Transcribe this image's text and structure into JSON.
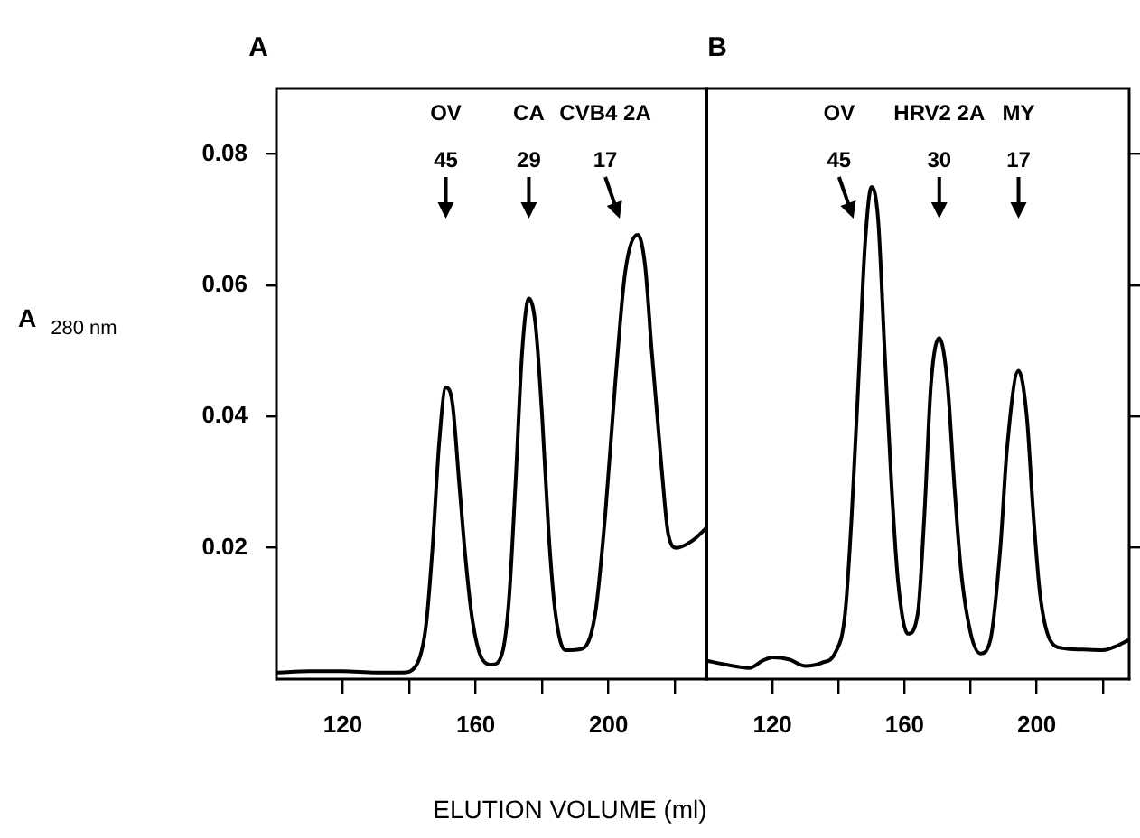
{
  "chart_data": [
    {
      "type": "line",
      "title": "A",
      "ylabel": "A$_{280 nm}$",
      "xlabel": "ELUTION VOLUME (ml)",
      "xlim": [
        100,
        230
      ],
      "ylim": [
        0,
        0.09
      ],
      "xticks": [
        120,
        {
          "value": 140,
          "label": null
        },
        160,
        {
          "value": 180,
          "label": null
        },
        200,
        {
          "value": 220,
          "label": null
        }
      ],
      "yticks": [
        0.02,
        0.04,
        0.06,
        0.08
      ],
      "grid": false,
      "legend": false,
      "marker": "none",
      "line_style": "solid",
      "series": [
        {
          "color": "#000000",
          "x": [
            100,
            110,
            120,
            130,
            138,
            142,
            145,
            147,
            149,
            151,
            153,
            155,
            157,
            159,
            162,
            165,
            168,
            170,
            172,
            174,
            176,
            178,
            180,
            182,
            184,
            187,
            192,
            196,
            199,
            202,
            205,
            208.8,
            211,
            213,
            216,
            218,
            220.5,
            225,
            230
          ],
          "values": [
            0.001,
            0.0012,
            0.0012,
            0.001,
            0.001,
            0.002,
            0.008,
            0.02,
            0.036,
            0.0444,
            0.042,
            0.03,
            0.018,
            0.009,
            0.003,
            0.0022,
            0.004,
            0.012,
            0.03,
            0.05,
            0.058,
            0.054,
            0.04,
            0.022,
            0.01,
            0.0044,
            0.0046,
            0.01,
            0.025,
            0.045,
            0.062,
            0.0677,
            0.063,
            0.05,
            0.032,
            0.022,
            0.02,
            0.021,
            0.0233
          ]
        }
      ],
      "annotations": [
        "OV",
        "CA",
        "CVB4 2A",
        "45",
        "29",
        "17"
      ]
    },
    {
      "type": "line",
      "title": "B",
      "xlim": [
        100,
        228
      ],
      "ylim": [
        0,
        0.09
      ],
      "xticks": [
        120,
        {
          "value": 140,
          "label": null
        },
        160,
        {
          "value": 180,
          "label": null
        },
        200,
        {
          "value": 220,
          "label": null
        }
      ],
      "yticks": [
        0.02,
        0.04,
        0.06,
        0.08
      ],
      "tick_labels": "x",
      "grid": false,
      "legend": false,
      "marker": "none",
      "line_style": "solid",
      "series": [
        {
          "color": "#000000",
          "x": [
            100,
            106,
            113,
            117,
            120,
            125,
            130,
            135,
            139,
            142,
            144,
            146,
            148,
            150,
            152,
            154,
            156,
            158,
            161,
            164,
            166,
            168,
            170.5,
            173,
            175,
            177,
            180,
            183,
            186,
            189,
            191,
            194.5,
            197,
            199,
            201,
            204,
            208,
            214,
            220,
            224,
            228
          ],
          "values": [
            0.0028,
            0.0022,
            0.0017,
            0.0028,
            0.0033,
            0.003,
            0.002,
            0.0025,
            0.004,
            0.01,
            0.025,
            0.045,
            0.066,
            0.075,
            0.07,
            0.0497,
            0.03,
            0.015,
            0.0069,
            0.01,
            0.025,
            0.045,
            0.052,
            0.045,
            0.03,
            0.017,
            0.007,
            0.0039,
            0.006,
            0.02,
            0.035,
            0.047,
            0.04,
            0.025,
            0.013,
            0.006,
            0.0047,
            0.0045,
            0.0044,
            0.005,
            0.006
          ]
        }
      ],
      "annotations": [
        "OV",
        "HRV2 2A",
        "MY",
        "45",
        "30",
        "17"
      ]
    }
  ]
}
